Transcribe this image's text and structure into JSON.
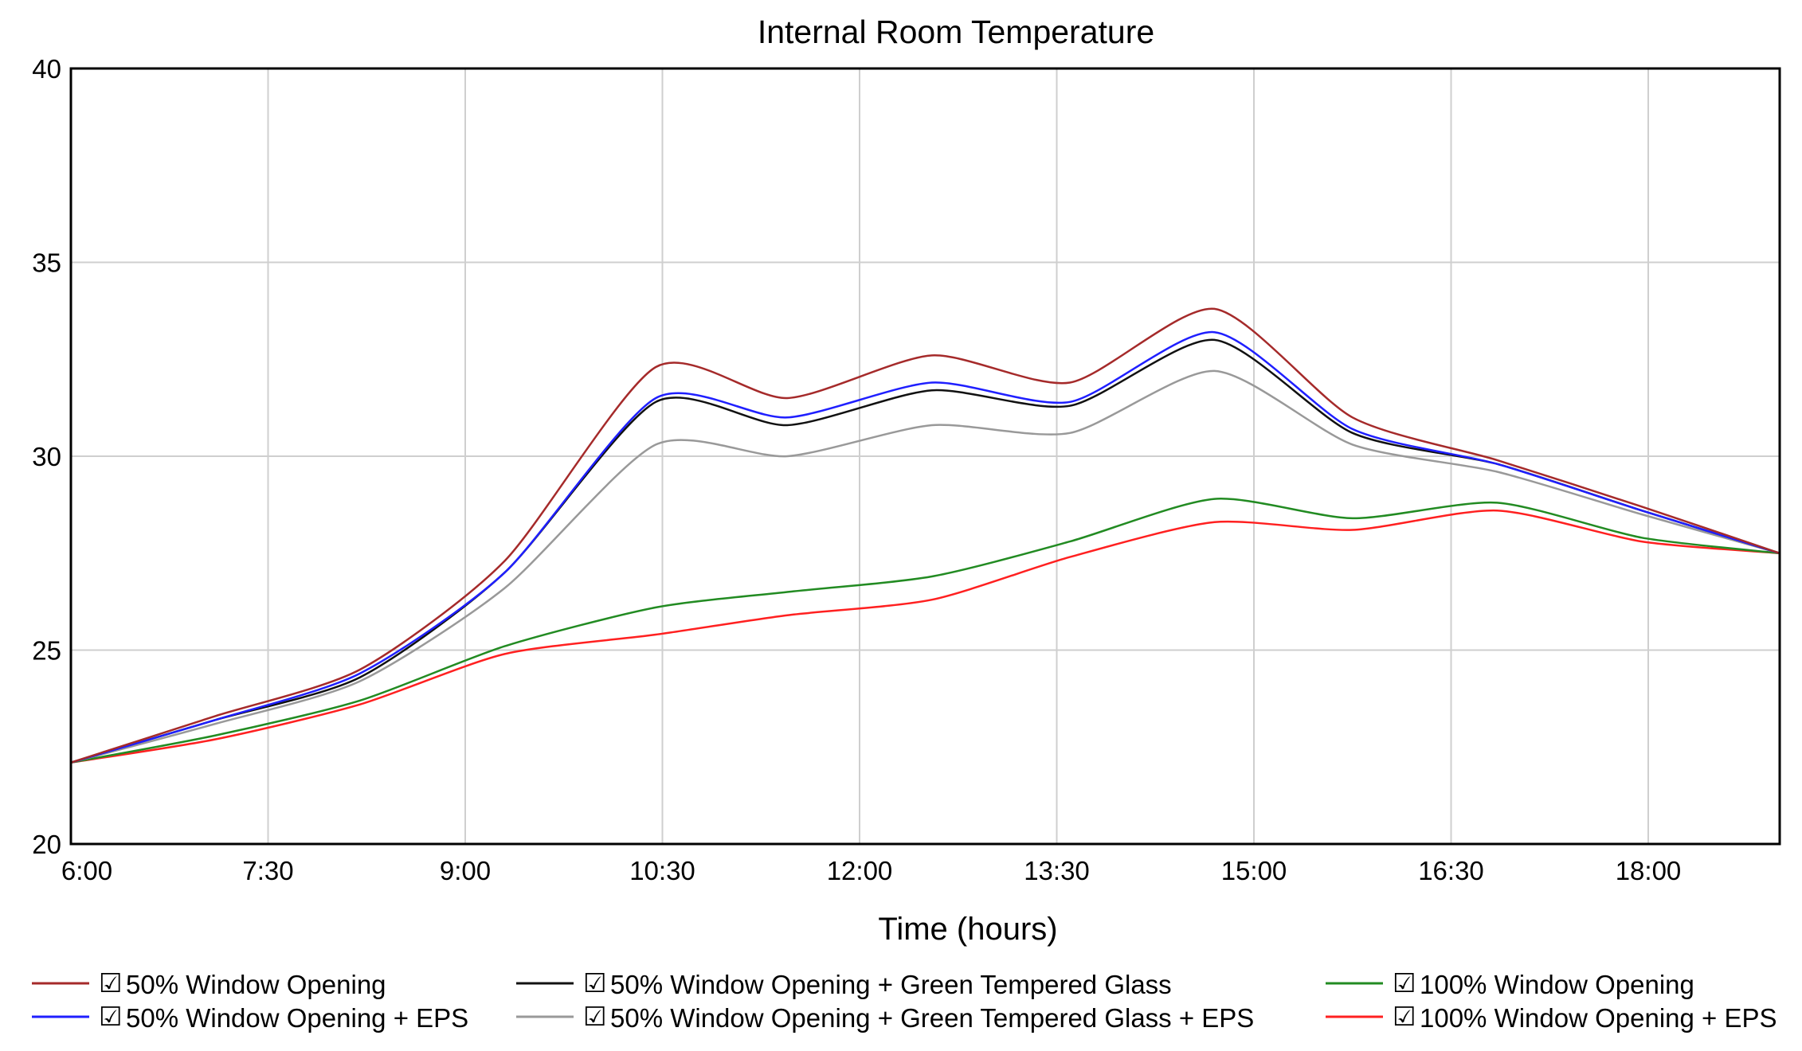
{
  "chart_data": {
    "type": "line",
    "title": "Internal Room Temperature",
    "xlabel": "Time (hours)",
    "ylabel": "",
    "xlim": [
      6.0,
      19.0
    ],
    "ylim": [
      20,
      40
    ],
    "x_ticks": [
      6.0,
      7.5,
      9.0,
      10.5,
      12.0,
      13.5,
      15.0,
      16.5,
      18.0
    ],
    "x_tick_labels": [
      "6:00",
      "7:30",
      "9:00",
      "10:30",
      "12:00",
      "13:30",
      "15:00",
      "16:30",
      "18:00"
    ],
    "y_ticks": [
      20,
      25,
      30,
      35,
      40
    ],
    "y_tick_labels": [
      "20",
      "25",
      "30",
      "35",
      "40"
    ],
    "grid": true,
    "legend_position": "bottom",
    "x": [
      6.0,
      7.1,
      8.2,
      9.3,
      10.45,
      11.45,
      12.55,
      13.6,
      14.7,
      15.75,
      16.85,
      17.95,
      19.0
    ],
    "series": [
      {
        "name": "50% Window Opening",
        "color": "#a52a2a",
        "values": [
          22.1,
          23.3,
          24.5,
          27.3,
          32.3,
          31.5,
          32.6,
          31.9,
          33.8,
          31.0,
          29.9,
          28.7,
          27.5
        ]
      },
      {
        "name": "50% Window Opening + EPS",
        "color": "#1f1fff",
        "values": [
          22.1,
          23.2,
          24.4,
          27.0,
          31.5,
          31.0,
          31.9,
          31.4,
          33.2,
          30.7,
          29.8,
          28.6,
          27.5
        ]
      },
      {
        "name": "50% Window Opening + Green Tempered Glass",
        "color": "#111111",
        "values": [
          22.1,
          23.2,
          24.3,
          27.0,
          31.4,
          30.8,
          31.7,
          31.3,
          33.0,
          30.6,
          29.8,
          28.6,
          27.5
        ]
      },
      {
        "name": "50% Window Opening + Green Tempered Glass + EPS",
        "color": "#999999",
        "values": [
          22.1,
          23.1,
          24.2,
          26.6,
          30.3,
          30.0,
          30.8,
          30.6,
          32.2,
          30.3,
          29.6,
          28.5,
          27.5
        ]
      },
      {
        "name": "100% Window Opening",
        "color": "#228b22",
        "values": [
          22.1,
          22.8,
          23.7,
          25.1,
          26.1,
          26.5,
          26.9,
          27.8,
          28.9,
          28.4,
          28.8,
          27.9,
          27.5
        ]
      },
      {
        "name": "100% Window Opening + EPS",
        "color": "#ff2020",
        "values": [
          22.1,
          22.7,
          23.6,
          24.9,
          25.4,
          25.9,
          26.3,
          27.4,
          28.3,
          28.1,
          28.6,
          27.8,
          27.5
        ]
      }
    ],
    "legend_checkbox": "☑"
  }
}
